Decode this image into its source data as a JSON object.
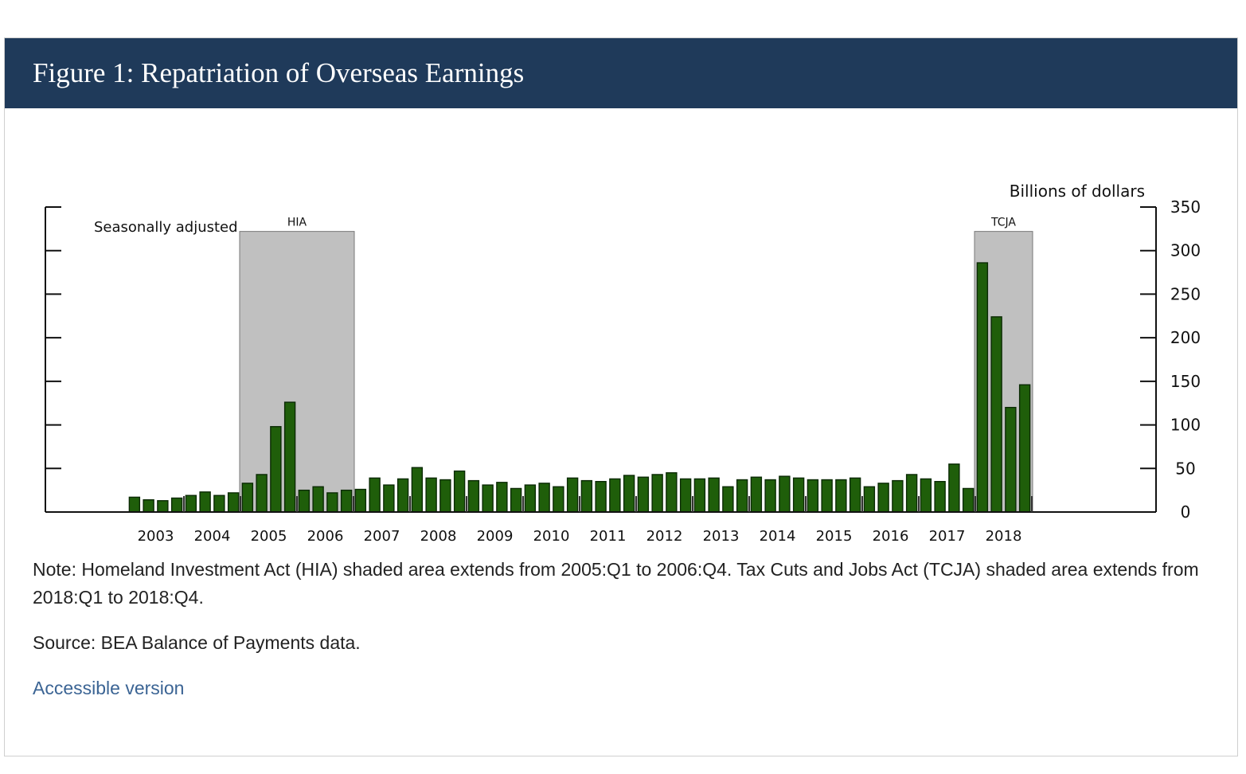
{
  "figure": {
    "title": "Figure 1: Repatriation of Overseas Earnings",
    "note": "Note: Homeland Investment Act (HIA) shaded area extends from 2005:Q1 to 2006:Q4. Tax Cuts and Jobs Act (TCJA) shaded area extends from 2018:Q1 to 2018:Q4.",
    "source": "Source: BEA Balance of Payments data.",
    "accessible_link": "Accessible version"
  },
  "chart_data": {
    "type": "bar",
    "title": "",
    "ylabel": "Billions of dollars",
    "annotation": "Seasonally adjusted",
    "ylim": [
      0,
      350
    ],
    "y_ticks": [
      0,
      50,
      100,
      150,
      200,
      250,
      300,
      350
    ],
    "year_labels": [
      "2003",
      "2004",
      "2005",
      "2006",
      "2007",
      "2008",
      "2009",
      "2010",
      "2011",
      "2012",
      "2013",
      "2014",
      "2015",
      "2016",
      "2017",
      "2018"
    ],
    "shaded_periods": [
      {
        "label": "HIA",
        "start": "2005:Q1",
        "end": "2006:Q4"
      },
      {
        "label": "TCJA",
        "start": "2018:Q1",
        "end": "2018:Q4"
      }
    ],
    "bar_color": "#1f5e0a",
    "shade_color": "#c0c0c0",
    "categories": [
      "2003:Q1",
      "2003:Q2",
      "2003:Q3",
      "2003:Q4",
      "2004:Q1",
      "2004:Q2",
      "2004:Q3",
      "2004:Q4",
      "2005:Q1",
      "2005:Q2",
      "2005:Q3",
      "2005:Q4",
      "2006:Q1",
      "2006:Q2",
      "2006:Q3",
      "2006:Q4",
      "2007:Q1",
      "2007:Q2",
      "2007:Q3",
      "2007:Q4",
      "2008:Q1",
      "2008:Q2",
      "2008:Q3",
      "2008:Q4",
      "2009:Q1",
      "2009:Q2",
      "2009:Q3",
      "2009:Q4",
      "2010:Q1",
      "2010:Q2",
      "2010:Q3",
      "2010:Q4",
      "2011:Q1",
      "2011:Q2",
      "2011:Q3",
      "2011:Q4",
      "2012:Q1",
      "2012:Q2",
      "2012:Q3",
      "2012:Q4",
      "2013:Q1",
      "2013:Q2",
      "2013:Q3",
      "2013:Q4",
      "2014:Q1",
      "2014:Q2",
      "2014:Q3",
      "2014:Q4",
      "2015:Q1",
      "2015:Q2",
      "2015:Q3",
      "2015:Q4",
      "2016:Q1",
      "2016:Q2",
      "2016:Q3",
      "2016:Q4",
      "2017:Q1",
      "2017:Q2",
      "2017:Q3",
      "2017:Q4",
      "2018:Q1",
      "2018:Q2",
      "2018:Q3",
      "2018:Q4"
    ],
    "values": [
      17,
      14,
      13,
      16,
      19,
      23,
      19,
      22,
      33,
      43,
      98,
      126,
      25,
      29,
      22,
      25,
      26,
      39,
      31,
      38,
      51,
      39,
      37,
      47,
      36,
      31,
      34,
      27,
      31,
      33,
      29,
      39,
      36,
      35,
      38,
      42,
      40,
      43,
      45,
      38,
      38,
      39,
      29,
      37,
      40,
      37,
      41,
      39,
      37,
      37,
      37,
      39,
      29,
      33,
      36,
      43,
      38,
      35,
      55,
      27,
      286,
      224,
      120,
      146
    ]
  }
}
